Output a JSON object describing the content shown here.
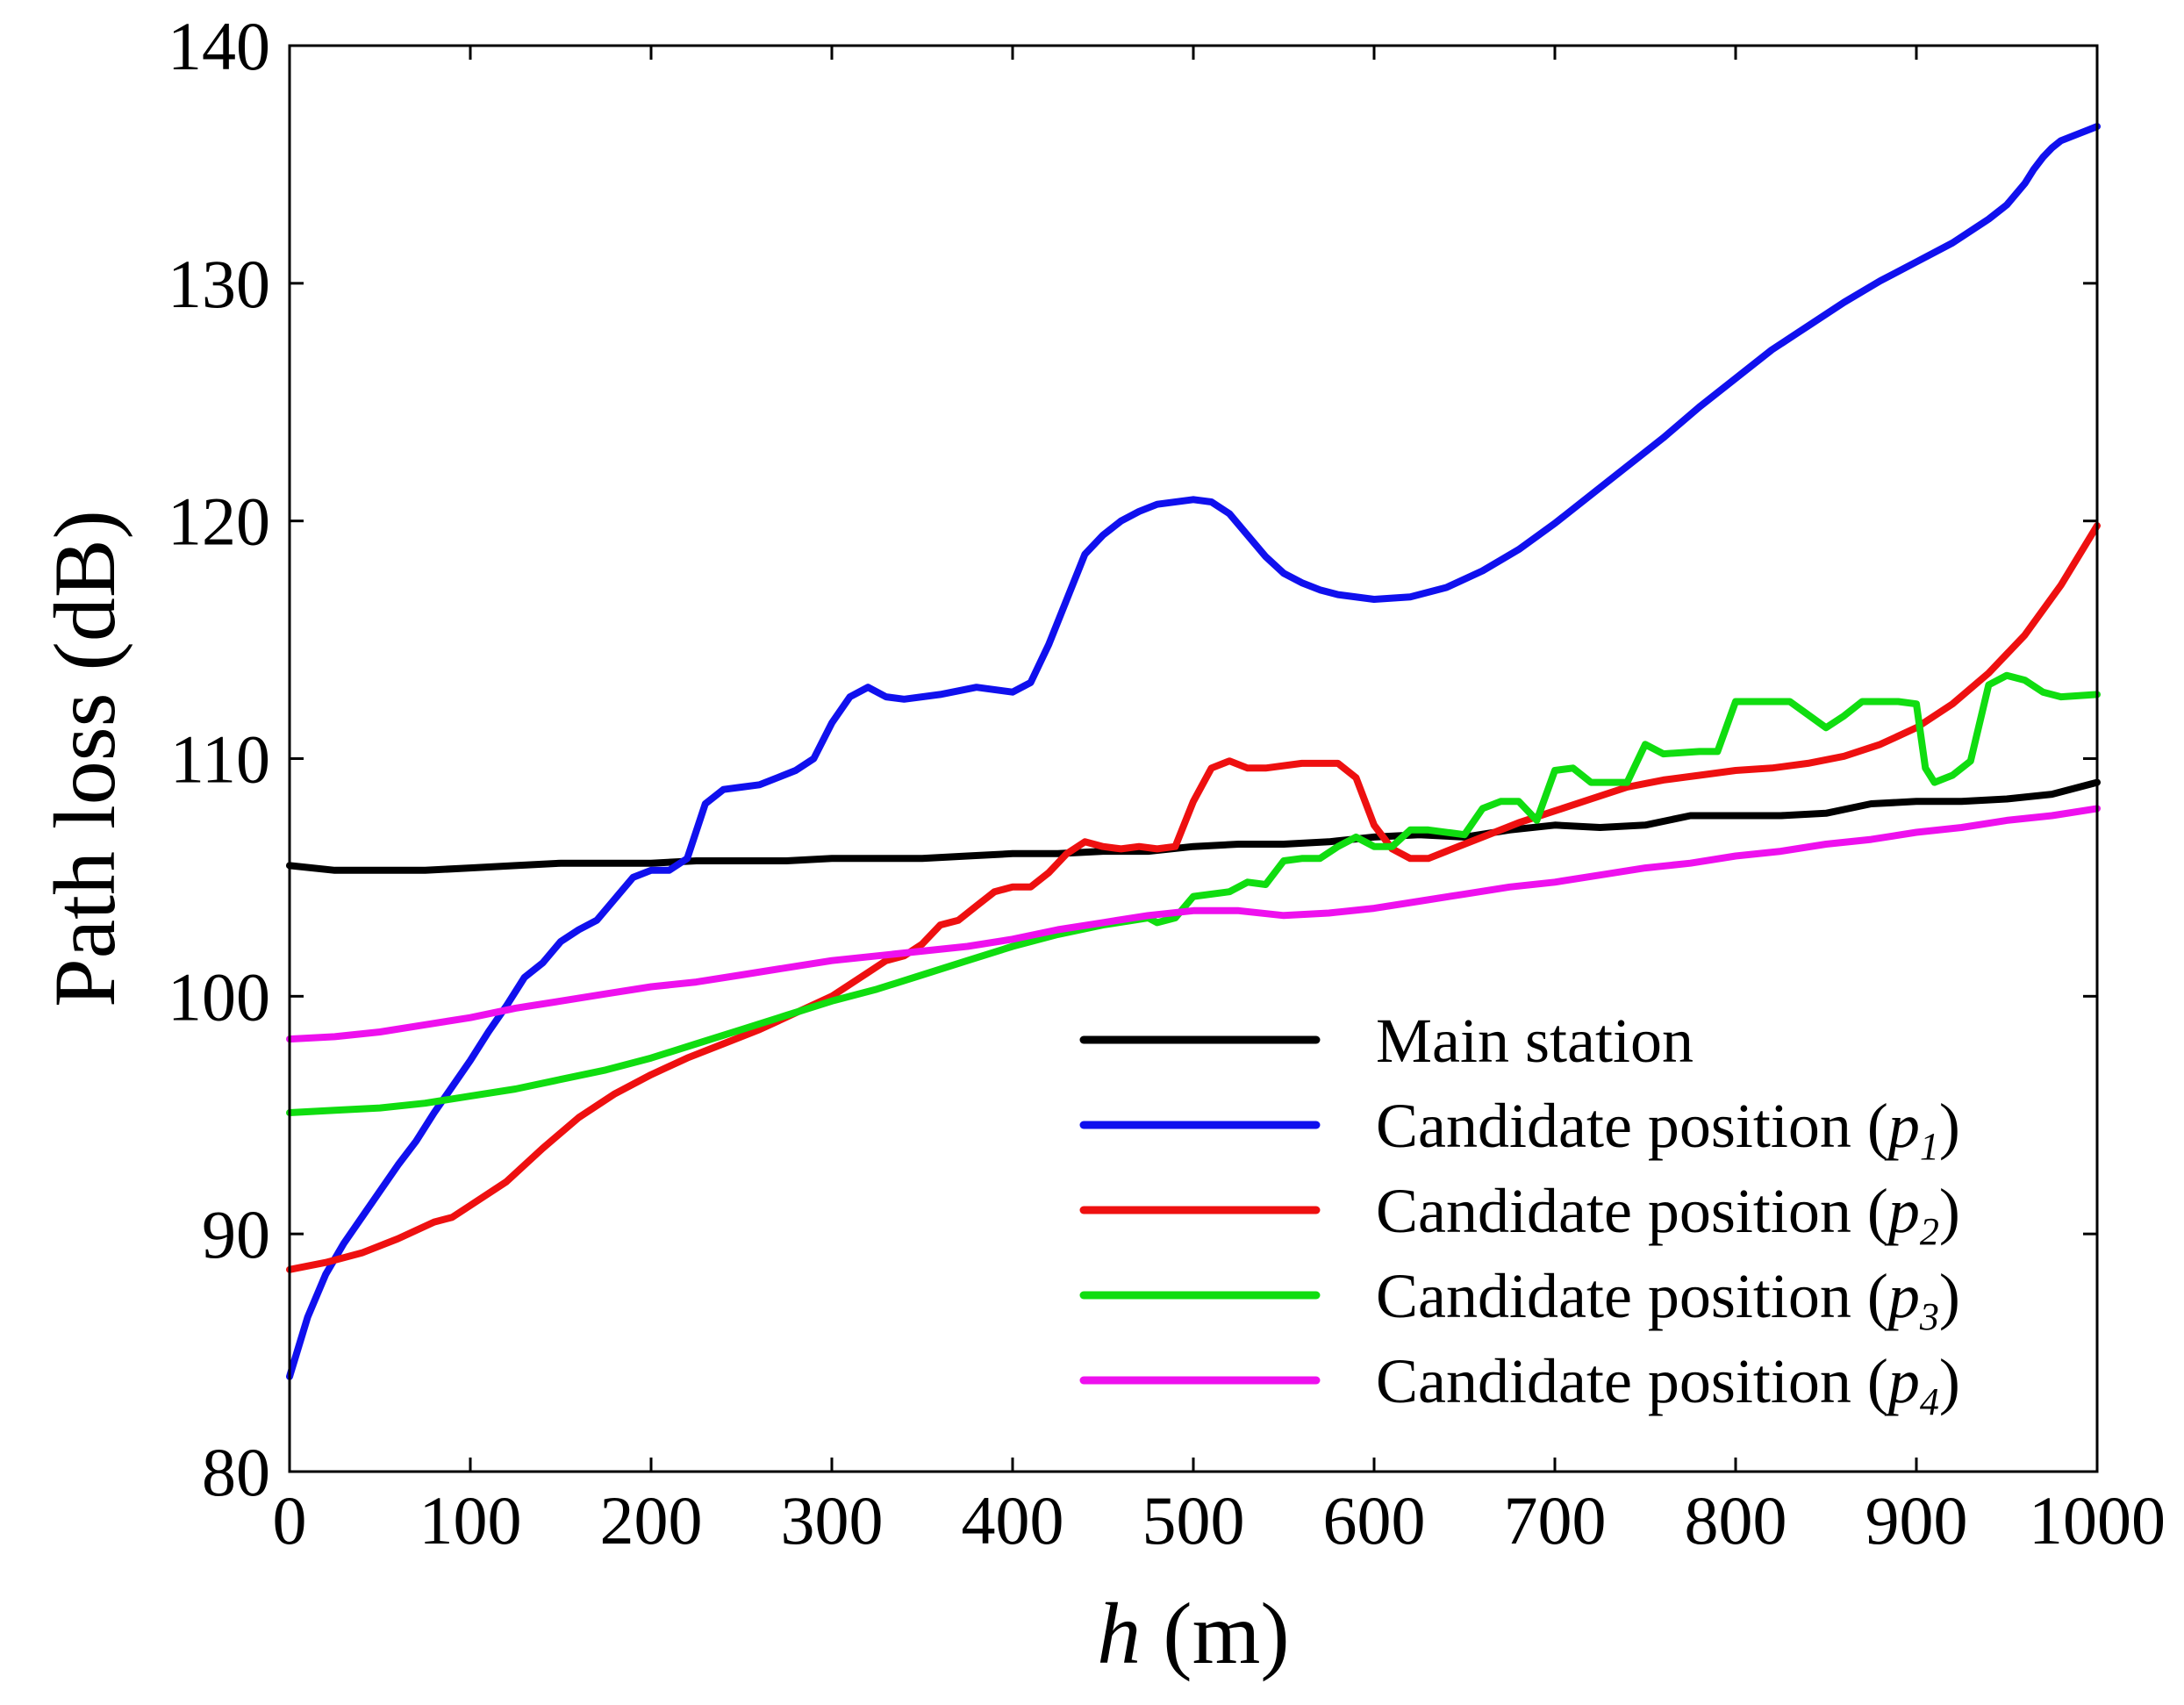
{
  "chart_data": {
    "type": "line",
    "title": "",
    "xlabel": {
      "var": "h",
      "unit": " (m)"
    },
    "ylabel": "Path loss (dB)",
    "xlim": [
      0,
      1000
    ],
    "ylim": [
      80,
      140
    ],
    "xticks": [
      "0",
      "100",
      "200",
      "300",
      "400",
      "500",
      "600",
      "700",
      "800",
      "900",
      "1000"
    ],
    "yticks": [
      "80",
      "90",
      "100",
      "110",
      "120",
      "130",
      "140"
    ],
    "grid": false,
    "legend_position": "bottom-right",
    "series": [
      {
        "name": "Main station",
        "legend": {
          "prefix": "Main station",
          "sub": "",
          "suffix": ""
        },
        "color": "#000000",
        "x": [
          0,
          25,
          50,
          75,
          100,
          125,
          150,
          175,
          200,
          225,
          250,
          275,
          300,
          325,
          350,
          375,
          400,
          425,
          450,
          475,
          500,
          525,
          550,
          575,
          600,
          625,
          650,
          675,
          700,
          725,
          750,
          775,
          800,
          825,
          850,
          875,
          900,
          925,
          950,
          975,
          1000
        ],
        "y": [
          105.5,
          105.3,
          105.3,
          105.3,
          105.4,
          105.5,
          105.6,
          105.6,
          105.6,
          105.7,
          105.7,
          105.7,
          105.8,
          105.8,
          105.8,
          105.9,
          106.0,
          106.0,
          106.1,
          106.1,
          106.3,
          106.4,
          106.4,
          106.5,
          106.7,
          106.8,
          106.7,
          107.0,
          107.2,
          107.1,
          107.2,
          107.6,
          107.6,
          107.6,
          107.7,
          108.1,
          108.2,
          108.2,
          108.3,
          108.5,
          109.0
        ]
      },
      {
        "name": "Candidate position (p1)",
        "legend": {
          "prefix": "Candidate position (",
          "sub": "p",
          "index": "1",
          "suffix": ")"
        },
        "color": "#1010ee",
        "x": [
          0,
          10,
          20,
          30,
          40,
          50,
          60,
          70,
          80,
          90,
          100,
          110,
          120,
          130,
          140,
          150,
          160,
          170,
          180,
          190,
          200,
          210,
          220,
          230,
          240,
          250,
          260,
          270,
          280,
          290,
          300,
          310,
          320,
          330,
          340,
          360,
          380,
          400,
          410,
          420,
          430,
          440,
          450,
          460,
          470,
          480,
          500,
          510,
          520,
          530,
          540,
          550,
          560,
          570,
          580,
          600,
          620,
          640,
          660,
          680,
          700,
          720,
          740,
          760,
          780,
          800,
          820,
          840,
          860,
          880,
          900,
          920,
          940,
          950,
          960,
          965,
          970,
          975,
          980,
          990,
          1000
        ],
        "y": [
          84.0,
          86.5,
          88.3,
          89.6,
          90.7,
          91.8,
          92.9,
          93.9,
          95.1,
          96.2,
          97.3,
          98.5,
          99.6,
          100.8,
          101.4,
          102.3,
          102.8,
          103.2,
          104.1,
          105.0,
          105.3,
          105.3,
          105.8,
          108.1,
          108.7,
          108.8,
          108.9,
          109.2,
          109.5,
          110.0,
          111.5,
          112.6,
          113.0,
          112.6,
          112.5,
          112.7,
          113.0,
          112.8,
          113.2,
          114.8,
          116.7,
          118.6,
          119.4,
          120.0,
          120.4,
          120.7,
          120.9,
          120.8,
          120.3,
          119.4,
          118.5,
          117.8,
          117.4,
          117.1,
          116.9,
          116.7,
          116.8,
          117.2,
          117.9,
          118.8,
          119.9,
          121.1,
          122.3,
          123.5,
          124.8,
          126.0,
          127.2,
          128.2,
          129.2,
          130.1,
          130.9,
          131.7,
          132.7,
          133.3,
          134.2,
          134.8,
          135.3,
          135.7,
          136.0,
          136.3,
          136.6
        ]
      },
      {
        "name": "Candidate position (p2)",
        "legend": {
          "prefix": "Candidate position (",
          "sub": "p",
          "index": "2",
          "suffix": ")"
        },
        "color": "#ee1010",
        "x": [
          0,
          20,
          40,
          60,
          80,
          90,
          100,
          120,
          140,
          160,
          180,
          200,
          220,
          240,
          260,
          280,
          300,
          310,
          320,
          330,
          340,
          350,
          360,
          370,
          380,
          390,
          400,
          410,
          420,
          430,
          440,
          450,
          460,
          470,
          480,
          490,
          500,
          510,
          520,
          530,
          540,
          560,
          580,
          590,
          600,
          610,
          620,
          630,
          640,
          660,
          680,
          700,
          720,
          740,
          760,
          780,
          800,
          820,
          840,
          860,
          880,
          900,
          920,
          940,
          960,
          980,
          1000
        ],
        "y": [
          88.5,
          88.8,
          89.2,
          89.8,
          90.5,
          90.7,
          91.2,
          92.2,
          93.6,
          94.9,
          95.9,
          96.7,
          97.4,
          98.0,
          98.6,
          99.3,
          100.0,
          100.5,
          101.0,
          101.5,
          101.7,
          102.2,
          103.0,
          103.2,
          103.8,
          104.4,
          104.6,
          104.6,
          105.2,
          106.0,
          106.5,
          106.3,
          106.2,
          106.3,
          106.2,
          106.3,
          108.2,
          109.6,
          109.9,
          109.6,
          109.6,
          109.8,
          109.8,
          109.2,
          107.2,
          106.2,
          105.8,
          105.8,
          106.1,
          106.7,
          107.3,
          107.8,
          108.3,
          108.8,
          109.1,
          109.3,
          109.5,
          109.6,
          109.8,
          110.1,
          110.6,
          111.3,
          112.3,
          113.6,
          115.2,
          117.3,
          119.8
        ]
      },
      {
        "name": "Candidate position (p3)",
        "legend": {
          "prefix": "Candidate position (",
          "sub": "p",
          "index": "3",
          "suffix": ")"
        },
        "color": "#10dd10",
        "x": [
          0,
          25,
          50,
          75,
          100,
          125,
          150,
          175,
          200,
          225,
          250,
          275,
          300,
          325,
          350,
          375,
          400,
          425,
          450,
          475,
          480,
          490,
          500,
          520,
          530,
          540,
          550,
          560,
          570,
          580,
          590,
          600,
          610,
          620,
          630,
          650,
          660,
          670,
          680,
          690,
          700,
          710,
          720,
          740,
          750,
          760,
          780,
          790,
          800,
          810,
          830,
          850,
          860,
          870,
          890,
          900,
          905,
          910,
          920,
          930,
          940,
          950,
          960,
          970,
          980,
          1000
        ],
        "y": [
          95.1,
          95.2,
          95.3,
          95.5,
          95.8,
          96.1,
          96.5,
          96.9,
          97.4,
          98.0,
          98.6,
          99.2,
          99.8,
          100.3,
          100.9,
          101.5,
          102.1,
          102.6,
          103.0,
          103.3,
          103.1,
          103.3,
          104.2,
          104.4,
          104.8,
          104.7,
          105.7,
          105.8,
          105.8,
          106.3,
          106.7,
          106.3,
          106.3,
          107.0,
          107.0,
          106.8,
          107.9,
          108.2,
          108.2,
          107.4,
          109.5,
          109.6,
          109.0,
          109.0,
          110.6,
          110.2,
          110.3,
          110.3,
          112.4,
          112.4,
          112.4,
          111.3,
          111.8,
          112.4,
          112.4,
          112.3,
          109.6,
          109.0,
          109.3,
          109.9,
          113.1,
          113.5,
          113.3,
          112.8,
          112.6,
          112.7
        ]
      },
      {
        "name": "Candidate position (p4)",
        "legend": {
          "prefix": "Candidate position (",
          "sub": "p",
          "index": "4",
          "suffix": ")"
        },
        "color": "#ee10ee",
        "x": [
          0,
          25,
          50,
          75,
          100,
          125,
          150,
          175,
          200,
          225,
          250,
          275,
          300,
          325,
          350,
          375,
          400,
          425,
          450,
          475,
          500,
          525,
          550,
          575,
          600,
          625,
          650,
          675,
          700,
          725,
          750,
          775,
          800,
          825,
          850,
          875,
          900,
          925,
          950,
          975,
          1000
        ],
        "y": [
          98.2,
          98.3,
          98.5,
          98.8,
          99.1,
          99.5,
          99.8,
          100.1,
          100.4,
          100.6,
          100.9,
          101.2,
          101.5,
          101.7,
          101.9,
          102.1,
          102.4,
          102.8,
          103.1,
          103.4,
          103.6,
          103.6,
          103.4,
          103.5,
          103.7,
          104.0,
          104.3,
          104.6,
          104.8,
          105.1,
          105.4,
          105.6,
          105.9,
          106.1,
          106.4,
          106.6,
          106.9,
          107.1,
          107.4,
          107.6,
          107.9
        ]
      }
    ]
  }
}
